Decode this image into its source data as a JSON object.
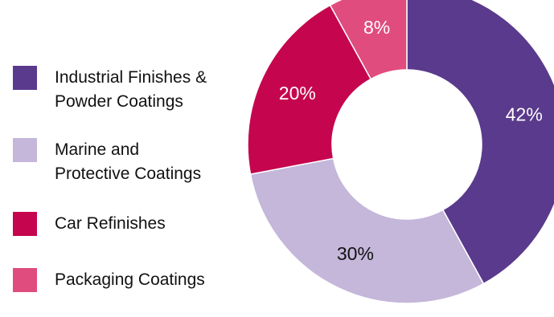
{
  "chart_data": {
    "type": "pie",
    "donut": true,
    "title": "",
    "categories": [
      "Industrial Finishes & Powder Coatings",
      "Marine and Protective Coatings",
      "Car Refinishes",
      "Packaging Coatings"
    ],
    "legend_labels": [
      "Industrial Finishes &\nPowder Coatings",
      "Marine and\nProtective Coatings",
      "Car Refinishes",
      "Packaging Coatings"
    ],
    "values": [
      42,
      30,
      20,
      8
    ],
    "value_labels": [
      "42%",
      "30%",
      "20%",
      "8%"
    ],
    "colors": [
      "#5a3a8c",
      "#c4b7da",
      "#c5064e",
      "#e04c7e"
    ],
    "label_colors": [
      "#ffffff",
      "#111111",
      "#ffffff",
      "#ffffff"
    ],
    "legend_placement": "left",
    "start_angle": "top, clockwise"
  }
}
